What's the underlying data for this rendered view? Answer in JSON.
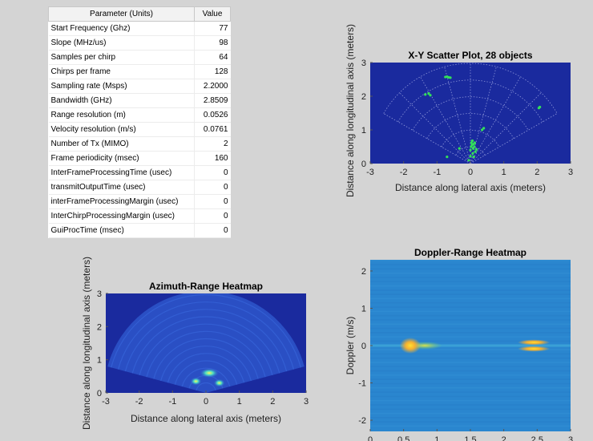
{
  "table": {
    "header_param": "Parameter (Units)",
    "header_value": "Value",
    "rows": [
      {
        "name": "Start Frequency (Ghz)",
        "value": "77"
      },
      {
        "name": "Slope (MHz/us)",
        "value": "98"
      },
      {
        "name": "Samples per chirp",
        "value": "64"
      },
      {
        "name": "Chirps per frame",
        "value": "128"
      },
      {
        "name": "Sampling rate (Msps)",
        "value": "2.2000"
      },
      {
        "name": "Bandwidth (GHz)",
        "value": "2.8509"
      },
      {
        "name": "Range resolution (m)",
        "value": "0.0526"
      },
      {
        "name": "Velocity resolution (m/s)",
        "value": "0.0761"
      },
      {
        "name": "Number of Tx (MIMO)",
        "value": "2"
      },
      {
        "name": "Frame periodicity (msec)",
        "value": "160"
      },
      {
        "name": "InterFrameProcessingTime (usec)",
        "value": "0"
      },
      {
        "name": "transmitOutputTime (usec)",
        "value": "0"
      },
      {
        "name": "interFrameProcessingMargin (usec)",
        "value": "0"
      },
      {
        "name": "InterChirpProcessingMargin (usec)",
        "value": "0"
      },
      {
        "name": "GuiProcTime (msec)",
        "value": "0"
      }
    ]
  },
  "colors": {
    "plot_bg": "#1a2a9e",
    "heat_bg": "#2a86cf",
    "points": "#33e05a",
    "grid": "#8a93d8"
  },
  "chart_data": [
    {
      "type": "scatter",
      "title": "X-Y Scatter Plot, 28 objects",
      "xlabel": "Distance along lateral axis (meters)",
      "ylabel": "Distance along longitudinal axis (meters)",
      "xlim": [
        -3,
        3
      ],
      "ylim": [
        0,
        3
      ],
      "xticks": [
        "-3",
        "-2",
        "-1",
        "0",
        "1",
        "2",
        "3"
      ],
      "yticks": [
        "0",
        "1",
        "2",
        "3"
      ],
      "grid": "polar",
      "points": [
        [
          -0.75,
          2.57
        ],
        [
          -0.7,
          2.58
        ],
        [
          -0.65,
          2.56
        ],
        [
          -0.6,
          2.55
        ],
        [
          -1.35,
          2.05
        ],
        [
          -1.25,
          2.08
        ],
        [
          -1.2,
          2.03
        ],
        [
          -0.33,
          0.45
        ],
        [
          -0.7,
          0.2
        ],
        [
          0.0,
          0.4
        ],
        [
          0.02,
          0.5
        ],
        [
          0.05,
          0.55
        ],
        [
          0.08,
          0.45
        ],
        [
          0.1,
          0.58
        ],
        [
          0.12,
          0.5
        ],
        [
          0.03,
          0.62
        ],
        [
          0.06,
          0.68
        ],
        [
          0.0,
          0.22
        ],
        [
          0.1,
          0.2
        ],
        [
          0.15,
          0.35
        ],
        [
          0.35,
          1.0
        ],
        [
          0.4,
          1.05
        ],
        [
          -0.05,
          0.1
        ],
        [
          0.18,
          0.42
        ],
        [
          2.05,
          1.65
        ],
        [
          2.08,
          1.68
        ],
        [
          0.07,
          0.3
        ],
        [
          0.13,
          0.62
        ]
      ]
    },
    {
      "type": "heatmap",
      "title": "Azimuth-Range Heatmap",
      "xlabel": "Distance along lateral axis (meters)",
      "ylabel": "Distance along longitudinal axis (meters)",
      "xlim": [
        -3,
        3
      ],
      "ylim": [
        0,
        3
      ],
      "xticks": [
        "-3",
        "-2",
        "-1",
        "0",
        "1",
        "2",
        "3"
      ],
      "yticks": [
        "0",
        "1",
        "2",
        "3"
      ],
      "hotspots": [
        [
          0.1,
          0.6
        ],
        [
          -0.3,
          0.35
        ],
        [
          0.4,
          0.3
        ]
      ]
    },
    {
      "type": "heatmap",
      "title": "Doppler-Range Heatmap",
      "xlabel": "",
      "ylabel": "Doppler (m/s)",
      "xlim": [
        0,
        3
      ],
      "ylim": [
        -2.3,
        2.3
      ],
      "xticks": [
        "0",
        "0.5",
        "1",
        "1.5",
        "2",
        "2.5",
        "3"
      ],
      "yticks": [
        "-2",
        "-1",
        "0",
        "1",
        "2"
      ],
      "hotspots": [
        [
          0.6,
          0.0
        ],
        [
          2.45,
          0.0
        ]
      ]
    }
  ]
}
